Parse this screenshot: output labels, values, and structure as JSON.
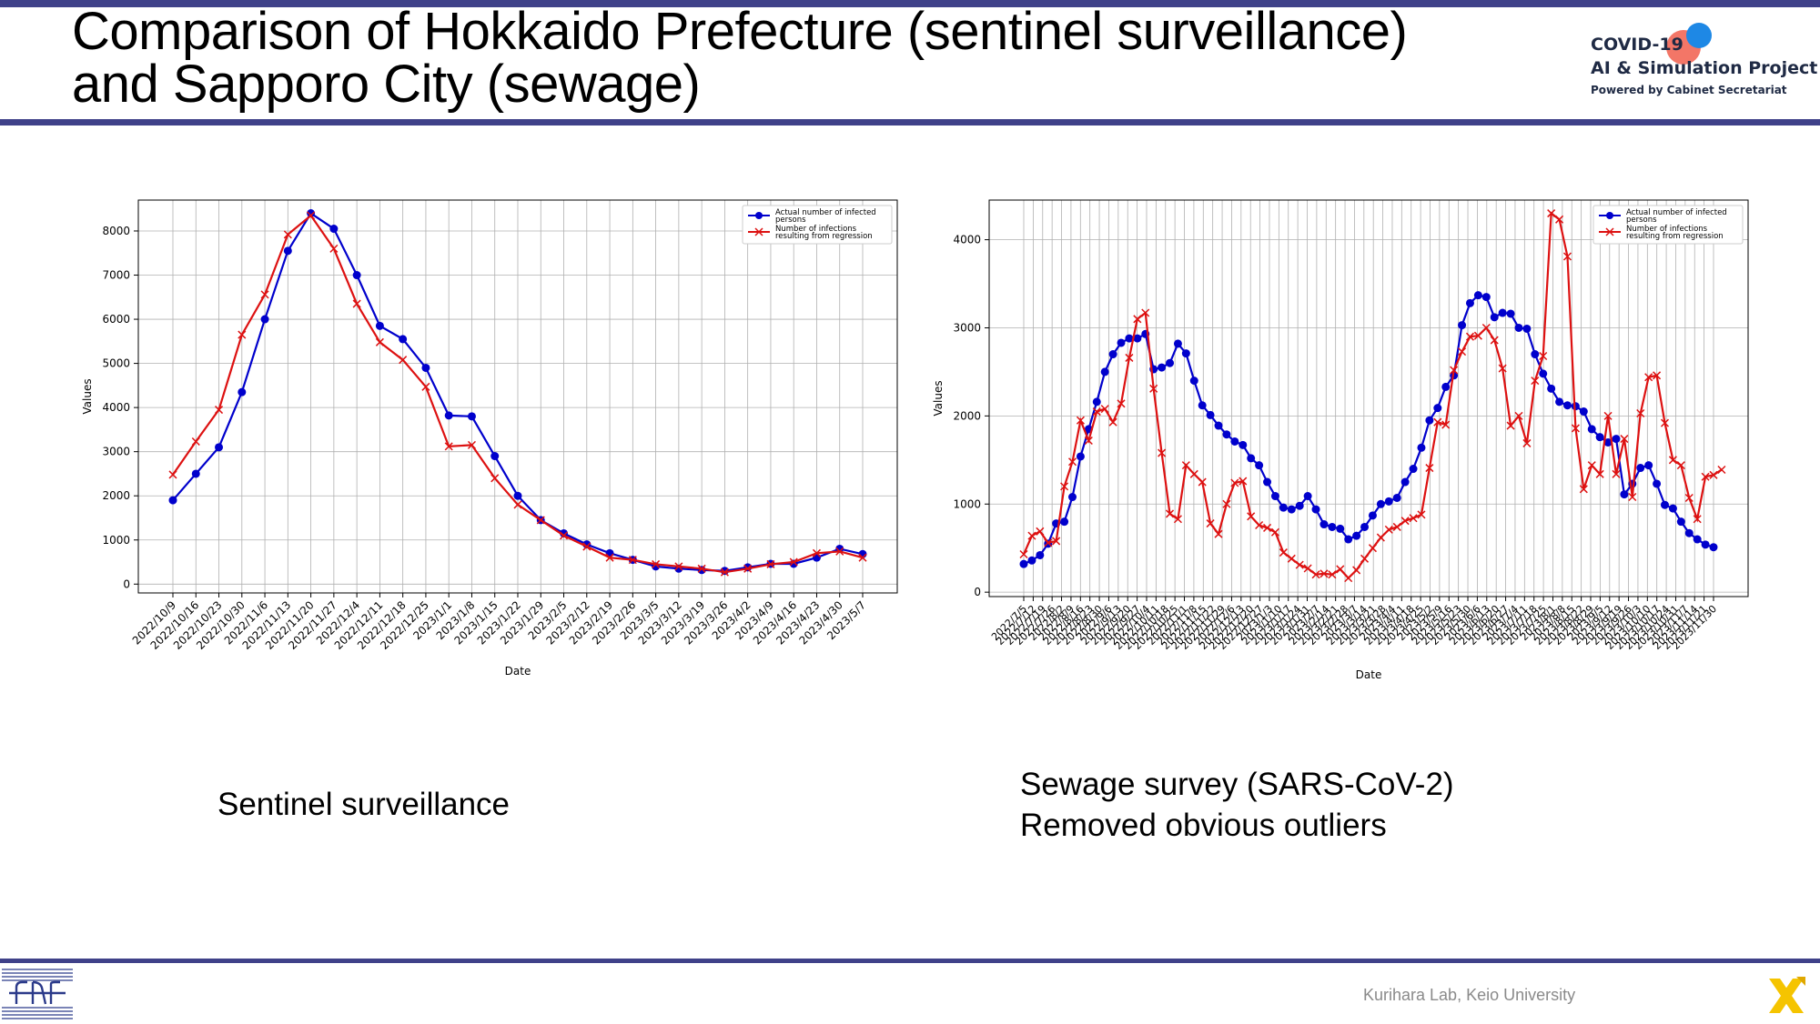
{
  "slide": {
    "title_line1": "Comparison of Hokkaido Prefecture (sentinel surveillance)",
    "title_line2": "and Sapporo City (sewage)",
    "colors": {
      "band": "#3f4189",
      "blue_series": "#0000cc",
      "red_series": "#dd1111"
    }
  },
  "logo": {
    "line1": "COVID-19",
    "line2": "AI & Simulation Project",
    "line3": "Powered by Cabinet Secretariat"
  },
  "captions": {
    "left": "Sentinel surveillance",
    "right_line1": "Sewage survey (SARS-CoV-2)",
    "right_line2": "Removed obvious outliers"
  },
  "footer": {
    "lab": "Kurihara Lab, Keio University"
  },
  "chart_data": [
    {
      "type": "line",
      "xlabel": "Date",
      "ylabel": "Values",
      "ylim": [
        -200,
        8700
      ],
      "yticks": [
        0,
        1000,
        2000,
        3000,
        4000,
        5000,
        6000,
        7000,
        8000
      ],
      "grid": true,
      "legend_position": "top-right",
      "categories": [
        "2022/10/9",
        "2022/10/16",
        "2022/10/23",
        "2022/10/30",
        "2022/11/6",
        "2022/11/13",
        "2022/11/20",
        "2022/11/27",
        "2022/12/4",
        "2022/12/11",
        "2022/12/18",
        "2022/12/25",
        "2023/1/1",
        "2023/1/8",
        "2023/1/15",
        "2023/1/22",
        "2023/1/29",
        "2023/2/5",
        "2023/2/12",
        "2023/2/19",
        "2023/2/26",
        "2023/3/5",
        "2023/3/12",
        "2023/3/19",
        "2023/3/26",
        "2023/4/2",
        "2023/4/9",
        "2023/4/16",
        "2023/4/23",
        "2023/4/30",
        "2023/5/7"
      ],
      "series": [
        {
          "name": "Actual number of infected persons",
          "legend_lines": [
            "Actual number of infected",
            "persons"
          ],
          "color": "#0000cc",
          "marker": "circle",
          "values": [
            1900,
            2500,
            3100,
            4350,
            6000,
            7550,
            8400,
            8050,
            7000,
            5850,
            5550,
            4900,
            3820,
            3800,
            2900,
            2000,
            1450,
            1150,
            900,
            700,
            550,
            400,
            350,
            320,
            300,
            380,
            460,
            460,
            600,
            800,
            680
          ]
        },
        {
          "name": "Number of infections resulting from regression",
          "legend_lines": [
            "Number of infections",
            "resulting from regression"
          ],
          "color": "#dd1111",
          "marker": "x",
          "values": [
            2480,
            3230,
            3950,
            5650,
            6560,
            7920,
            8350,
            7600,
            6350,
            5480,
            5080,
            4470,
            3120,
            3150,
            2400,
            1800,
            1450,
            1100,
            850,
            600,
            550,
            450,
            400,
            350,
            270,
            350,
            450,
            500,
            700,
            740,
            600
          ]
        }
      ]
    },
    {
      "type": "line",
      "xlabel": "Date",
      "ylabel": "Values",
      "ylim": [
        -50,
        4450
      ],
      "yticks": [
        0,
        1000,
        2000,
        3000,
        4000
      ],
      "grid": true,
      "legend_position": "top-right",
      "x_tick_labels": [
        "2022/7/5",
        "2022/7/12",
        "2022/7/19",
        "2022/7/26",
        "2022/8/2",
        "2022/8/9",
        "2022/8/16",
        "2022/8/23",
        "2022/8/30",
        "2022/9/6",
        "2022/9/13",
        "2022/9/20",
        "2022/9/27",
        "2022/10/4",
        "2022/10/11",
        "2022/10/18",
        "2022/10/25",
        "2022/11/1",
        "2022/11/8",
        "2022/11/15",
        "2022/11/22",
        "2022/11/29",
        "2022/12/6",
        "2022/12/13",
        "2022/12/20",
        "2022/12/27",
        "2023/1/3",
        "2023/1/10",
        "2023/1/17",
        "2023/1/24",
        "2023/1/31",
        "2023/2/7",
        "2023/2/14",
        "2023/2/21",
        "2023/2/28",
        "2023/3/7",
        "2023/3/14",
        "2023/3/21",
        "2023/3/28",
        "2023/4/4",
        "2023/4/11",
        "2023/4/18",
        "2023/4/25",
        "2023/5/2",
        "2023/5/9",
        "2023/5/16",
        "2023/5/23",
        "2023/5/30",
        "2023/6/6",
        "2023/6/13",
        "2023/6/20",
        "2023/6/27",
        "2023/7/4",
        "2023/7/11",
        "2023/7/18",
        "2023/7/25",
        "2023/8/1",
        "2023/8/8",
        "2023/8/15",
        "2023/8/22",
        "2023/8/29",
        "2023/9/5",
        "2023/9/12",
        "2023/9/19",
        "2023/9/26",
        "2023/10/3",
        "2023/10/10",
        "2023/10/17",
        "2023/10/24",
        "2023/10/31",
        "2023/11/7",
        "2023/11/14",
        "2023/11/21",
        "2023/11/30"
      ],
      "series": [
        {
          "name": "Actual number of infected persons",
          "legend_lines": [
            "Actual number of infected",
            "persons"
          ],
          "color": "#0000cc",
          "marker": "circle",
          "values": [
            320,
            360,
            420,
            550,
            780,
            800,
            1080,
            1540,
            1850,
            2160,
            2500,
            2700,
            2830,
            2880,
            2880,
            2930,
            2530,
            2550,
            2600,
            2820,
            2710,
            2400,
            2120,
            2010,
            1890,
            1790,
            1710,
            1670,
            1520,
            1440,
            1250,
            1090,
            960,
            940,
            980,
            1090,
            940,
            770,
            740,
            720,
            600,
            640,
            740,
            870,
            1000,
            1030,
            1070,
            1250,
            1400,
            1640,
            1950,
            2090,
            2330,
            2460,
            3030,
            3280,
            3370,
            3350,
            3120,
            3170,
            3160,
            3000,
            2990,
            2700,
            2480,
            2310,
            2160,
            2120,
            2110,
            2050,
            1850,
            1760,
            1700,
            1740,
            1110,
            1230,
            1410,
            1440,
            1230,
            990,
            950,
            800,
            670,
            600,
            540,
            510
          ]
        },
        {
          "name": "Number of infections resulting from regression",
          "legend_lines": [
            "Number of infections",
            "resulting from regression"
          ],
          "color": "#dd1111",
          "marker": "x",
          "values": [
            430,
            640,
            690,
            560,
            580,
            1200,
            1480,
            1950,
            1720,
            2050,
            2080,
            1930,
            2140,
            2660,
            3100,
            3170,
            2310,
            1580,
            890,
            830,
            1440,
            1340,
            1250,
            780,
            660,
            1000,
            1240,
            1260,
            860,
            760,
            730,
            680,
            450,
            380,
            310,
            270,
            200,
            210,
            200,
            260,
            160,
            250,
            380,
            500,
            620,
            710,
            740,
            810,
            840,
            880,
            1410,
            1930,
            1900,
            2520,
            2730,
            2900,
            2910,
            3000,
            2860,
            2540,
            1890,
            2000,
            1690,
            2400,
            2680,
            4300,
            4230,
            3810,
            1860,
            1170,
            1440,
            1340,
            2000,
            1340,
            1740,
            1080,
            2030,
            2440,
            2460,
            1920,
            1500,
            1440,
            1070,
            830,
            1310,
            1330,
            1390
          ]
        }
      ]
    }
  ]
}
